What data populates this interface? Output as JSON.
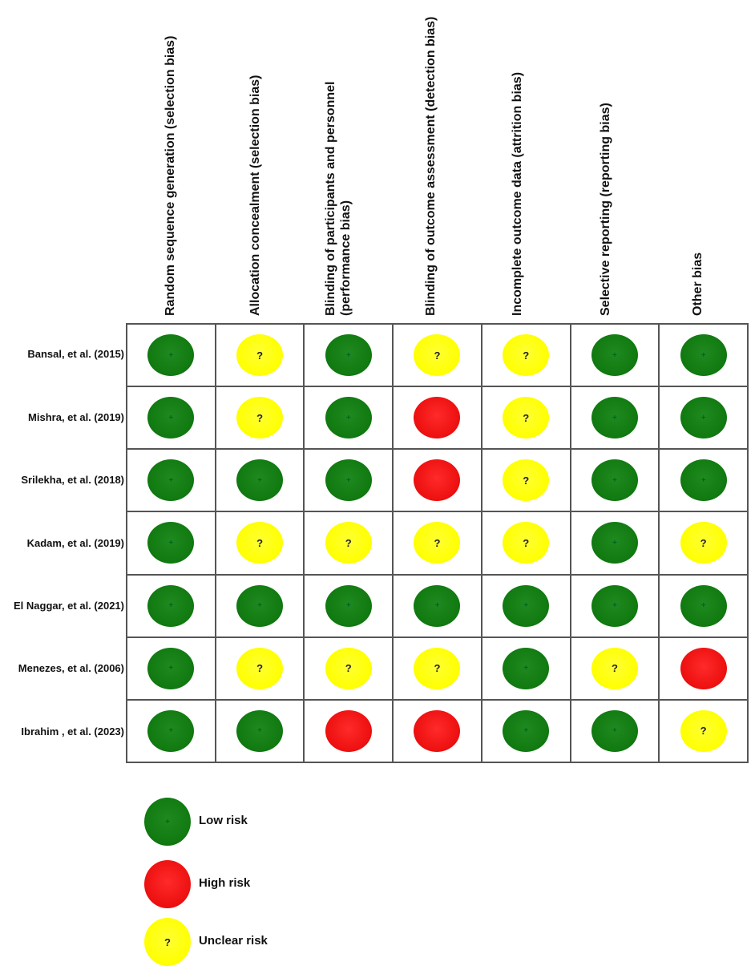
{
  "columns": [
    {
      "lines": [
        "Random sequence generation (selection bias)"
      ]
    },
    {
      "lines": [
        "Allocation concealment (selection bias)"
      ]
    },
    {
      "lines": [
        "Blinding of participants and personnel",
        "(performance bias)"
      ]
    },
    {
      "lines": [
        "Blinding of outcome assessment (detection bias)"
      ]
    },
    {
      "lines": [
        "Incomplete outcome data (attrition bias)"
      ]
    },
    {
      "lines": [
        "Selective reporting (reporting bias)"
      ]
    },
    {
      "lines": [
        "Other bias"
      ]
    }
  ],
  "rows": [
    {
      "study": "Bansal, et al. (2015)",
      "ratings": [
        "low",
        "unclear",
        "low",
        "unclear",
        "unclear",
        "low",
        "low"
      ]
    },
    {
      "study": "Mishra, et al. (2019)",
      "ratings": [
        "low",
        "unclear",
        "low",
        "high",
        "unclear",
        "low",
        "low"
      ]
    },
    {
      "study": "Srilekha, et al. (2018)",
      "ratings": [
        "low",
        "low",
        "low",
        "high",
        "unclear",
        "low",
        "low"
      ]
    },
    {
      "study": "Kadam, et al. (2019)",
      "ratings": [
        "low",
        "unclear",
        "unclear",
        "unclear",
        "unclear",
        "low",
        "unclear"
      ]
    },
    {
      "study": "El Naggar, et al. (2021)",
      "ratings": [
        "low",
        "low",
        "low",
        "low",
        "low",
        "low",
        "low"
      ]
    },
    {
      "study": "Menezes, et al. (2006)",
      "ratings": [
        "low",
        "unclear",
        "unclear",
        "unclear",
        "low",
        "unclear",
        "high"
      ]
    },
    {
      "study": "Ibrahim , et al. (2023)",
      "ratings": [
        "low",
        "low",
        "high",
        "high",
        "low",
        "low",
        "unclear"
      ]
    }
  ],
  "symbols": {
    "low": "+",
    "high": "",
    "unclear": "?"
  },
  "legend": [
    {
      "key": "low",
      "label": "Low risk"
    },
    {
      "key": "high",
      "label": "High risk"
    },
    {
      "key": "unclear",
      "label": "Unclear risk"
    }
  ],
  "colors": {
    "low": "#117a11",
    "high": "#ee1111",
    "unclear": "#ffff00"
  }
}
